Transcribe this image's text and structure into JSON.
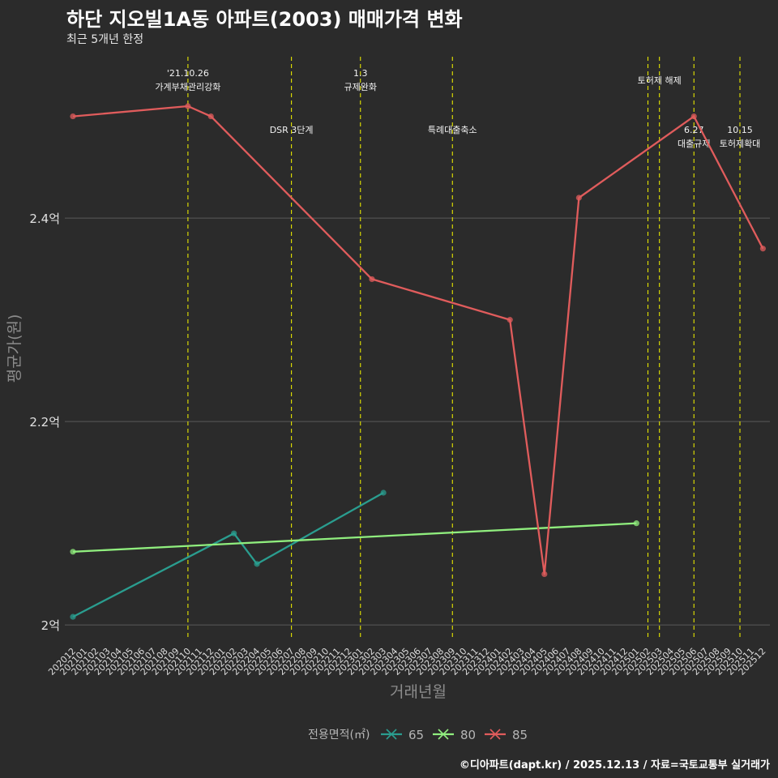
{
  "chart_data": {
    "type": "line",
    "title": "하단 지오빌1A동 아파트(2003) 매매가격 변화",
    "subtitle": "최근 5개년 한정",
    "xlabel": "거래년월",
    "ylabel": "평균가(원)",
    "categories": [
      "202012",
      "202101",
      "202102",
      "202103",
      "202104",
      "202105",
      "202106",
      "202107",
      "202108",
      "202109",
      "202110",
      "202111",
      "202112",
      "202201",
      "202202",
      "202203",
      "202204",
      "202205",
      "202206",
      "202207",
      "202208",
      "202209",
      "202210",
      "202211",
      "202212",
      "202301",
      "202302",
      "202303",
      "202304",
      "202305",
      "202306",
      "202307",
      "202308",
      "202309",
      "202310",
      "202311",
      "202312",
      "202401",
      "202402",
      "202403",
      "202404",
      "202405",
      "202406",
      "202407",
      "202408",
      "202409",
      "202410",
      "202411",
      "202412",
      "202501",
      "202502",
      "202503",
      "202504",
      "202505",
      "202506",
      "202507",
      "202508",
      "202509",
      "202510",
      "202511",
      "202512"
    ],
    "ylim": [
      1.985,
      2.565
    ],
    "yticks": [
      2.0,
      2.2,
      2.4
    ],
    "ytick_labels": [
      "2억",
      "2.2억",
      "2.4억"
    ],
    "legend": {
      "title": "전용면적(㎡)",
      "position": "bottom"
    },
    "series": [
      {
        "name": "65",
        "color": "#2a9d8f",
        "points": [
          [
            "202012",
            2.008
          ],
          [
            "202202",
            2.09
          ],
          [
            "202204",
            2.06
          ],
          [
            "202303",
            2.13
          ]
        ]
      },
      {
        "name": "80",
        "color": "#90ee7e",
        "points": [
          [
            "202012",
            2.072
          ],
          [
            "202501",
            2.1
          ]
        ]
      },
      {
        "name": "85",
        "color": "#e05c5c",
        "points": [
          [
            "202012",
            2.5
          ],
          [
            "202110",
            2.51
          ],
          [
            "202112",
            2.5
          ],
          [
            "202302",
            2.34
          ],
          [
            "202402",
            2.3
          ],
          [
            "202405",
            2.05
          ],
          [
            "202408",
            2.42
          ],
          [
            "202506",
            2.5
          ],
          [
            "202512",
            2.37
          ]
        ]
      }
    ],
    "events": [
      {
        "x": "202110",
        "lines": [
          "'21.10.26",
          "가계부채관리강화"
        ],
        "level": "top"
      },
      {
        "x": "202207",
        "lines": [
          "DSR 3단계"
        ],
        "level": "mid"
      },
      {
        "x": "202301",
        "lines": [
          "1.3",
          "규제완화"
        ],
        "level": "top"
      },
      {
        "x": "202309",
        "lines": [
          "특례대출축소"
        ],
        "level": "mid"
      },
      {
        "x": "202502",
        "lines": [],
        "level": "none"
      },
      {
        "x": "202503",
        "lines": [
          "토허제 해제"
        ],
        "level": "upper"
      },
      {
        "x": "202506",
        "lines": [
          "6.27",
          "대출규제"
        ],
        "level": "mid"
      },
      {
        "x": "202510",
        "lines": [
          "10.15",
          "토허제확대"
        ],
        "level": "mid"
      }
    ],
    "event_color": "#e6e600",
    "grid": true
  },
  "caption": "©디아파트(dapt.kr) / 2025.12.13 / 자료=국토교통부 실거래가"
}
